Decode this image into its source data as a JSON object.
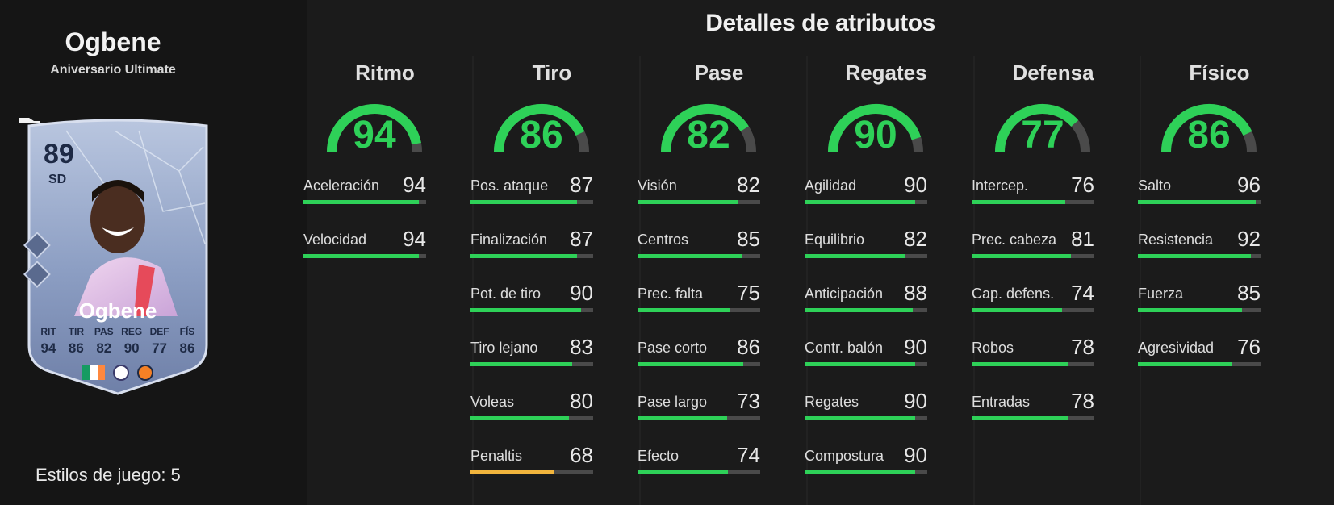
{
  "player": {
    "name": "Ogbene",
    "edition": "Aniversario Ultimate",
    "playstyles": "Estilos de juego: 5",
    "card": {
      "rating": "89",
      "position": "SD",
      "name": "Ogbene",
      "stats": [
        {
          "label": "RIT",
          "value": "94"
        },
        {
          "label": "TIR",
          "value": "86"
        },
        {
          "label": "PAS",
          "value": "82"
        },
        {
          "label": "REG",
          "value": "90"
        },
        {
          "label": "DEF",
          "value": "77"
        },
        {
          "label": "FÍS",
          "value": "86"
        }
      ],
      "nation_flag_colors": [
        "#169b62",
        "#ffffff",
        "#ff883e"
      ]
    }
  },
  "panel": {
    "title": "Detalles de atributos"
  },
  "colors": {
    "high": "#2ed158",
    "mid": "#f2b53d",
    "track": "#4a4a4a"
  },
  "categories": [
    {
      "title": "Ritmo",
      "value": "94",
      "attributes": [
        {
          "name": "Aceleración",
          "value": "94"
        },
        {
          "name": "Velocidad",
          "value": "94"
        }
      ]
    },
    {
      "title": "Tiro",
      "value": "86",
      "attributes": [
        {
          "name": "Pos. ataque",
          "value": "87"
        },
        {
          "name": "Finalización",
          "value": "87"
        },
        {
          "name": "Pot. de tiro",
          "value": "90"
        },
        {
          "name": "Tiro lejano",
          "value": "83"
        },
        {
          "name": "Voleas",
          "value": "80"
        },
        {
          "name": "Penaltis",
          "value": "68"
        }
      ]
    },
    {
      "title": "Pase",
      "value": "82",
      "attributes": [
        {
          "name": "Visión",
          "value": "82"
        },
        {
          "name": "Centros",
          "value": "85"
        },
        {
          "name": "Prec. falta",
          "value": "75"
        },
        {
          "name": "Pase corto",
          "value": "86"
        },
        {
          "name": "Pase largo",
          "value": "73"
        },
        {
          "name": "Efecto",
          "value": "74"
        }
      ]
    },
    {
      "title": "Regates",
      "value": "90",
      "attributes": [
        {
          "name": "Agilidad",
          "value": "90"
        },
        {
          "name": "Equilibrio",
          "value": "82"
        },
        {
          "name": "Anticipación",
          "value": "88"
        },
        {
          "name": "Contr. balón",
          "value": "90"
        },
        {
          "name": "Regates",
          "value": "90"
        },
        {
          "name": "Compostura",
          "value": "90"
        }
      ]
    },
    {
      "title": "Defensa",
      "value": "77",
      "attributes": [
        {
          "name": "Intercep.",
          "value": "76"
        },
        {
          "name": "Prec. cabeza",
          "value": "81"
        },
        {
          "name": "Cap. defens.",
          "value": "74"
        },
        {
          "name": "Robos",
          "value": "78"
        },
        {
          "name": "Entradas",
          "value": "78"
        }
      ]
    },
    {
      "title": "Físico",
      "value": "86",
      "attributes": [
        {
          "name": "Salto",
          "value": "96"
        },
        {
          "name": "Resistencia",
          "value": "92"
        },
        {
          "name": "Fuerza",
          "value": "85"
        },
        {
          "name": "Agresividad",
          "value": "76"
        }
      ]
    }
  ]
}
